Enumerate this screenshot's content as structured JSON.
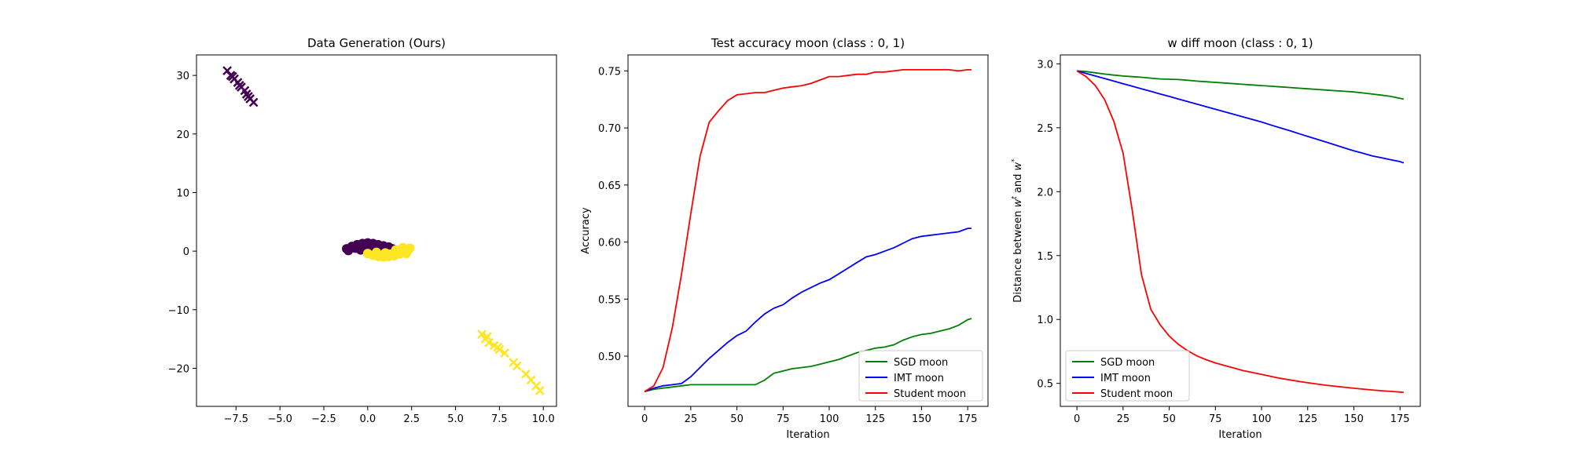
{
  "chart_data": [
    {
      "type": "scatter",
      "title": "Data Generation (Ours)",
      "xlabel": "",
      "ylabel": "",
      "xlim": [
        -9.75,
        10.75
      ],
      "ylim": [
        -26.5,
        33.5
      ],
      "xticks": [
        -7.5,
        -5.0,
        -2.5,
        0.0,
        2.5,
        5.0,
        7.5,
        10.0
      ],
      "xtick_labels": [
        "−7.5",
        "−5.0",
        "−2.5",
        "0.0",
        "2.5",
        "5.0",
        "7.5",
        "10.0"
      ],
      "yticks": [
        -20,
        -10,
        0,
        10,
        20,
        30
      ],
      "ytick_labels": [
        "−20",
        "−10",
        "0",
        "10",
        "20",
        "30"
      ],
      "series": [
        {
          "color": "#440154",
          "marker": "x",
          "points": [
            [
              -8.0,
              30.8
            ],
            [
              -7.8,
              30.0
            ],
            [
              -7.6,
              29.4
            ],
            [
              -7.4,
              28.8
            ],
            [
              -7.2,
              28.0
            ],
            [
              -7.0,
              27.4
            ],
            [
              -6.9,
              26.8
            ],
            [
              -6.7,
              26.0
            ],
            [
              -6.5,
              25.4
            ],
            [
              -7.7,
              29.8
            ],
            [
              -7.3,
              28.3
            ],
            [
              -6.8,
              26.4
            ]
          ]
        },
        {
          "color": "#440154",
          "marker": "o",
          "points": [
            [
              -1.2,
              0.4
            ],
            [
              -0.9,
              0.8
            ],
            [
              -0.6,
              1.1
            ],
            [
              -0.3,
              1.3
            ],
            [
              0.0,
              1.4
            ],
            [
              0.3,
              1.3
            ],
            [
              0.6,
              1.1
            ],
            [
              0.9,
              0.9
            ],
            [
              1.2,
              0.7
            ],
            [
              1.4,
              0.4
            ],
            [
              -1.1,
              0.1
            ],
            [
              -0.7,
              0.5
            ],
            [
              -0.2,
              0.8
            ],
            [
              0.2,
              0.9
            ],
            [
              0.7,
              0.6
            ],
            [
              1.1,
              0.3
            ],
            [
              -0.4,
              0.2
            ],
            [
              0.4,
              0.4
            ]
          ]
        },
        {
          "color": "#fde725",
          "marker": "o",
          "points": [
            [
              0.0,
              -0.4
            ],
            [
              0.3,
              -0.7
            ],
            [
              0.6,
              -0.9
            ],
            [
              0.9,
              -1.0
            ],
            [
              1.2,
              -0.9
            ],
            [
              1.5,
              -0.8
            ],
            [
              1.8,
              -0.5
            ],
            [
              2.1,
              -0.2
            ],
            [
              2.3,
              0.2
            ],
            [
              2.4,
              0.5
            ],
            [
              2.0,
              0.6
            ],
            [
              1.6,
              0.2
            ],
            [
              1.0,
              -0.3
            ],
            [
              0.5,
              -0.2
            ],
            [
              2.2,
              -0.4
            ],
            [
              1.3,
              -0.5
            ]
          ]
        },
        {
          "color": "#fde725",
          "marker": "x",
          "points": [
            [
              6.5,
              -14.2
            ],
            [
              6.7,
              -15.0
            ],
            [
              6.9,
              -15.6
            ],
            [
              7.2,
              -16.1
            ],
            [
              7.5,
              -16.8
            ],
            [
              7.8,
              -17.4
            ],
            [
              8.3,
              -19.0
            ],
            [
              8.5,
              -19.6
            ],
            [
              9.0,
              -21.0
            ],
            [
              9.3,
              -22.0
            ],
            [
              9.6,
              -23.0
            ],
            [
              9.8,
              -23.8
            ],
            [
              6.8,
              -14.6
            ],
            [
              7.4,
              -16.4
            ]
          ]
        }
      ]
    },
    {
      "type": "line",
      "title": "Test accuracy moon (class : 0, 1)",
      "xlabel": "Iteration",
      "ylabel": "Accuracy",
      "xlim": [
        -9,
        186
      ],
      "ylim": [
        0.456,
        0.764
      ],
      "xticks": [
        0,
        25,
        50,
        75,
        100,
        125,
        150,
        175
      ],
      "yticks": [
        0.5,
        0.55,
        0.6,
        0.65,
        0.7,
        0.75
      ],
      "ytick_labels": [
        "0.50",
        "0.55",
        "0.60",
        "0.65",
        "0.70",
        "0.75"
      ],
      "legend_position": "lower right",
      "x": [
        0,
        5,
        10,
        15,
        20,
        25,
        30,
        35,
        40,
        45,
        50,
        55,
        60,
        65,
        70,
        75,
        80,
        85,
        90,
        95,
        100,
        105,
        110,
        115,
        120,
        125,
        130,
        135,
        140,
        145,
        150,
        155,
        160,
        165,
        170,
        175,
        177
      ],
      "series": [
        {
          "name": "SGD moon",
          "color": "#008000",
          "values": [
            0.469,
            0.471,
            0.472,
            0.473,
            0.474,
            0.475,
            0.475,
            0.475,
            0.475,
            0.475,
            0.475,
            0.475,
            0.475,
            0.479,
            0.485,
            0.487,
            0.489,
            0.49,
            0.491,
            0.493,
            0.495,
            0.497,
            0.5,
            0.503,
            0.505,
            0.507,
            0.508,
            0.51,
            0.514,
            0.517,
            0.519,
            0.52,
            0.522,
            0.524,
            0.527,
            0.532,
            0.533
          ]
        },
        {
          "name": "IMT moon",
          "color": "#0000ff",
          "values": [
            0.469,
            0.472,
            0.474,
            0.475,
            0.476,
            0.482,
            0.49,
            0.498,
            0.505,
            0.512,
            0.518,
            0.522,
            0.53,
            0.537,
            0.542,
            0.545,
            0.551,
            0.556,
            0.56,
            0.564,
            0.567,
            0.572,
            0.577,
            0.582,
            0.587,
            0.589,
            0.592,
            0.595,
            0.599,
            0.603,
            0.605,
            0.606,
            0.607,
            0.608,
            0.609,
            0.612,
            0.612
          ]
        },
        {
          "name": "Student moon",
          "color": "#ff0000",
          "values": [
            0.469,
            0.474,
            0.49,
            0.525,
            0.572,
            0.625,
            0.675,
            0.705,
            0.715,
            0.724,
            0.729,
            0.73,
            0.731,
            0.731,
            0.733,
            0.735,
            0.736,
            0.737,
            0.739,
            0.742,
            0.745,
            0.745,
            0.746,
            0.747,
            0.747,
            0.749,
            0.749,
            0.75,
            0.751,
            0.751,
            0.751,
            0.751,
            0.751,
            0.751,
            0.75,
            0.751,
            0.751
          ]
        }
      ]
    },
    {
      "type": "line",
      "title": "w diff moon (class : 0, 1)",
      "xlabel": "Iteration",
      "ylabel": "Distance between w^t and w^*",
      "ylabel_parts": [
        "Distance between ",
        "w",
        "t",
        " and ",
        "w",
        "*"
      ],
      "xlim": [
        -9,
        186
      ],
      "ylim": [
        0.32,
        3.07
      ],
      "xticks": [
        0,
        25,
        50,
        75,
        100,
        125,
        150,
        175
      ],
      "yticks": [
        0.5,
        1.0,
        1.5,
        2.0,
        2.5,
        3.0
      ],
      "ytick_labels": [
        "0.5",
        "1.0",
        "1.5",
        "2.0",
        "2.5",
        "3.0"
      ],
      "legend_position": "lower left",
      "x": [
        0,
        5,
        10,
        15,
        20,
        25,
        30,
        35,
        40,
        45,
        50,
        55,
        60,
        65,
        70,
        75,
        80,
        85,
        90,
        95,
        100,
        105,
        110,
        115,
        120,
        125,
        130,
        135,
        140,
        145,
        150,
        155,
        160,
        165,
        170,
        175,
        177
      ],
      "series": [
        {
          "name": "SGD moon",
          "color": "#008000",
          "values": [
            2.945,
            2.94,
            2.93,
            2.92,
            2.912,
            2.905,
            2.9,
            2.895,
            2.888,
            2.882,
            2.88,
            2.877,
            2.872,
            2.865,
            2.86,
            2.855,
            2.85,
            2.845,
            2.84,
            2.835,
            2.83,
            2.825,
            2.82,
            2.815,
            2.81,
            2.805,
            2.8,
            2.795,
            2.79,
            2.785,
            2.78,
            2.772,
            2.764,
            2.755,
            2.745,
            2.73,
            2.725
          ]
        },
        {
          "name": "IMT moon",
          "color": "#0000ff",
          "values": [
            2.945,
            2.925,
            2.905,
            2.885,
            2.865,
            2.845,
            2.825,
            2.805,
            2.785,
            2.765,
            2.745,
            2.725,
            2.705,
            2.685,
            2.665,
            2.645,
            2.625,
            2.605,
            2.585,
            2.565,
            2.545,
            2.522,
            2.5,
            2.478,
            2.455,
            2.432,
            2.41,
            2.388,
            2.365,
            2.342,
            2.32,
            2.3,
            2.28,
            2.265,
            2.25,
            2.235,
            2.225
          ]
        },
        {
          "name": "Student moon",
          "color": "#ff0000",
          "values": [
            2.945,
            2.9,
            2.83,
            2.72,
            2.55,
            2.3,
            1.85,
            1.35,
            1.08,
            0.96,
            0.87,
            0.805,
            0.755,
            0.715,
            0.685,
            0.66,
            0.64,
            0.62,
            0.6,
            0.585,
            0.57,
            0.555,
            0.54,
            0.528,
            0.516,
            0.505,
            0.495,
            0.485,
            0.477,
            0.47,
            0.462,
            0.455,
            0.448,
            0.442,
            0.437,
            0.432,
            0.43
          ]
        }
      ]
    }
  ]
}
